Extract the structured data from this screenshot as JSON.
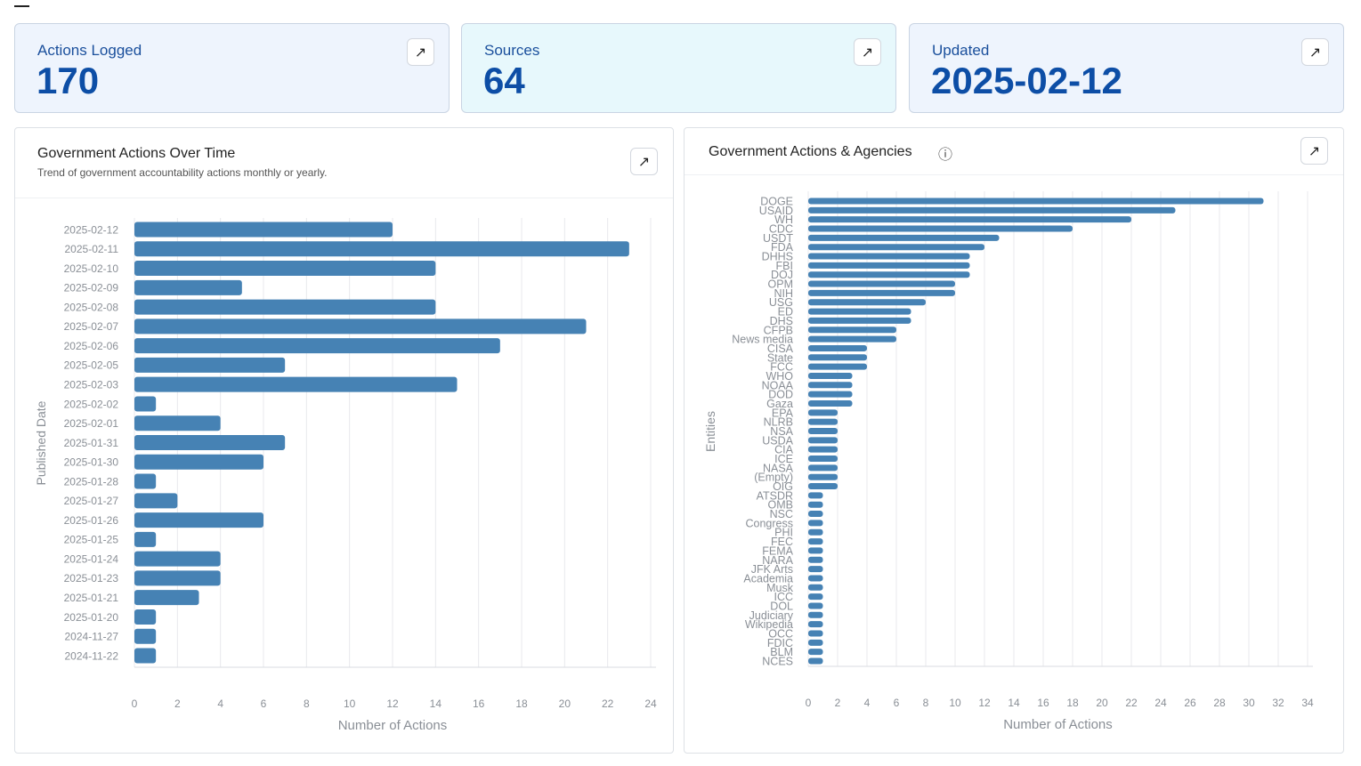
{
  "cards": [
    {
      "label": "Actions Logged",
      "value": "170",
      "bg": "#eef4fd"
    },
    {
      "label": "Sources",
      "value": "64",
      "bg": "#e7f8fc"
    },
    {
      "label": "Updated",
      "value": "2025-02-12",
      "bg": "#eef4fd"
    }
  ],
  "expand_icon": "↗",
  "info_icon": "ⓘ",
  "left_panel": {
    "title": "Government Actions Over Time",
    "subtitle": "Trend of government accountability actions monthly or yearly."
  },
  "right_panel": {
    "title": "Government Actions & Agencies"
  },
  "chart_data": [
    {
      "type": "bar",
      "orientation": "horizontal",
      "xlabel": "Number of Actions",
      "ylabel": "Published Date",
      "xlim": [
        0,
        24
      ],
      "xticks": [
        0,
        2,
        4,
        6,
        8,
        10,
        12,
        14,
        16,
        18,
        20,
        22,
        24
      ],
      "grid": true,
      "color": "#4682b4",
      "categories": [
        "2025-02-12",
        "2025-02-11",
        "2025-02-10",
        "2025-02-09",
        "2025-02-08",
        "2025-02-07",
        "2025-02-06",
        "2025-02-05",
        "2025-02-03",
        "2025-02-02",
        "2025-02-01",
        "2025-01-31",
        "2025-01-30",
        "2025-01-28",
        "2025-01-27",
        "2025-01-26",
        "2025-01-25",
        "2025-01-24",
        "2025-01-23",
        "2025-01-21",
        "2025-01-20",
        "2024-11-27",
        "2024-11-22"
      ],
      "values": [
        12,
        23,
        14,
        5,
        14,
        21,
        17,
        7,
        15,
        1,
        4,
        7,
        6,
        1,
        2,
        6,
        1,
        4,
        4,
        3,
        1,
        1,
        1
      ]
    },
    {
      "type": "bar",
      "orientation": "horizontal",
      "xlabel": "Number of Actions",
      "ylabel": "Entities",
      "xlim": [
        0,
        34
      ],
      "xticks": [
        0,
        2,
        4,
        6,
        8,
        10,
        12,
        14,
        16,
        18,
        20,
        22,
        24,
        26,
        28,
        30,
        32,
        34
      ],
      "grid": true,
      "color": "#4682b4",
      "categories": [
        "DOGE",
        "USAID",
        "WH",
        "CDC",
        "USDT",
        "FDA",
        "DHHS",
        "FBI",
        "DOJ",
        "OPM",
        "NIH",
        "USG",
        "ED",
        "DHS",
        "CFPB",
        "News media",
        "CISA",
        "State",
        "FCC",
        "WHO",
        "NOAA",
        "DOD",
        "Gaza",
        "EPA",
        "NLRB",
        "NSA",
        "USDA",
        "CIA",
        "ICE",
        "NASA",
        "(Empty)",
        "OIG",
        "ATSDR",
        "OMB",
        "NSC",
        "Congress",
        "PHI",
        "FEC",
        "FEMA",
        "NARA",
        "JFK Arts",
        "Academia",
        "Musk",
        "ICC",
        "DOL",
        "Judiciary",
        "Wikipedia",
        "OCC",
        "FDIC",
        "BLM",
        "NCES"
      ],
      "values": [
        31,
        25,
        22,
        18,
        13,
        12,
        11,
        11,
        11,
        10,
        10,
        8,
        7,
        7,
        6,
        6,
        4,
        4,
        4,
        3,
        3,
        3,
        3,
        2,
        2,
        2,
        2,
        2,
        2,
        2,
        2,
        2,
        1,
        1,
        1,
        1,
        1,
        1,
        1,
        1,
        1,
        1,
        1,
        1,
        1,
        1,
        1,
        1,
        1,
        1,
        1
      ]
    }
  ]
}
